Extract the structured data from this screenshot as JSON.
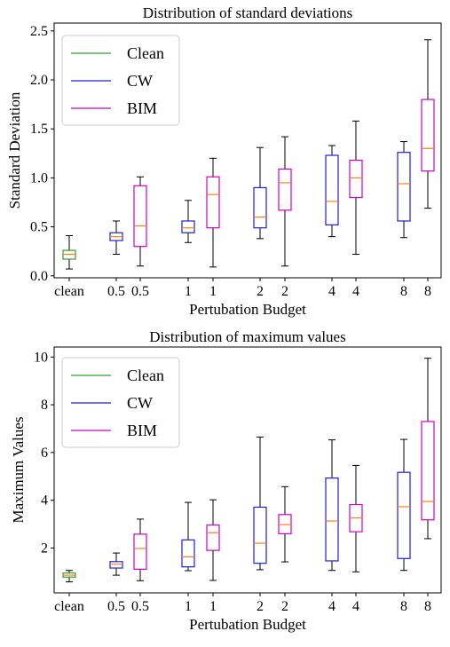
{
  "chart_data": [
    {
      "type": "box",
      "title": "Distribution of standard deviations",
      "xlabel": "Pertubation Budget",
      "ylabel": "Standard Deviation",
      "ylim": [
        -0.02,
        2.58
      ],
      "yticks": [
        0.0,
        0.5,
        1.0,
        1.5,
        2.0,
        2.5
      ],
      "ytick_labels": [
        "0.0",
        "0.5",
        "1.0",
        "1.5",
        "2.0",
        "2.5"
      ],
      "grid": false,
      "legend_position": "upper-left",
      "legend": [
        {
          "label": "Clean",
          "color": "#2ca02c"
        },
        {
          "label": "CW",
          "color": "#1f1fdc"
        },
        {
          "label": "BIM",
          "color": "#cc00cc"
        }
      ],
      "median_color": "#ff7f0e",
      "boxes": [
        {
          "label": "clean",
          "series": "Clean",
          "min": 0.07,
          "q1": 0.17,
          "median": 0.22,
          "q3": 0.26,
          "max": 0.41
        },
        {
          "label": "0.5",
          "series": "CW",
          "min": 0.22,
          "q1": 0.36,
          "median": 0.4,
          "q3": 0.44,
          "max": 0.56
        },
        {
          "label": "0.5",
          "series": "BIM",
          "min": 0.1,
          "q1": 0.3,
          "median": 0.51,
          "q3": 0.92,
          "max": 1.01
        },
        {
          "label": "1",
          "series": "CW",
          "min": 0.34,
          "q1": 0.44,
          "median": 0.49,
          "q3": 0.56,
          "max": 0.77
        },
        {
          "label": "1",
          "series": "BIM",
          "min": 0.09,
          "q1": 0.49,
          "median": 0.83,
          "q3": 1.01,
          "max": 1.2
        },
        {
          "label": "2",
          "series": "CW",
          "min": 0.38,
          "q1": 0.49,
          "median": 0.6,
          "q3": 0.9,
          "max": 1.31
        },
        {
          "label": "2",
          "series": "BIM",
          "min": 0.1,
          "q1": 0.67,
          "median": 0.95,
          "q3": 1.09,
          "max": 1.42
        },
        {
          "label": "4",
          "series": "CW",
          "min": 0.4,
          "q1": 0.52,
          "median": 0.76,
          "q3": 1.23,
          "max": 1.33
        },
        {
          "label": "4",
          "series": "BIM",
          "min": 0.22,
          "q1": 0.8,
          "median": 1.0,
          "q3": 1.18,
          "max": 1.58
        },
        {
          "label": "8",
          "series": "CW",
          "min": 0.39,
          "q1": 0.56,
          "median": 0.94,
          "q3": 1.26,
          "max": 1.37
        },
        {
          "label": "8",
          "series": "BIM",
          "min": 0.69,
          "q1": 1.07,
          "median": 1.3,
          "q3": 1.8,
          "max": 2.41
        }
      ]
    },
    {
      "type": "box",
      "title": "Distribution of maximum values",
      "xlabel": "Pertubation Budget",
      "ylabel": "Maximum Values",
      "ylim": [
        0.12,
        10.42
      ],
      "yticks": [
        2,
        4,
        6,
        8,
        10
      ],
      "ytick_labels": [
        "2",
        "4",
        "6",
        "8",
        "10"
      ],
      "grid": false,
      "legend_position": "upper-left",
      "legend": [
        {
          "label": "Clean",
          "color": "#2ca02c"
        },
        {
          "label": "CW",
          "color": "#1f1fdc"
        },
        {
          "label": "BIM",
          "color": "#cc00cc"
        }
      ],
      "median_color": "#ff7f0e",
      "boxes": [
        {
          "label": "clean",
          "series": "Clean",
          "min": 0.58,
          "q1": 0.78,
          "median": 0.86,
          "q3": 0.95,
          "max": 1.06
        },
        {
          "label": "0.5",
          "series": "CW",
          "min": 0.86,
          "q1": 1.16,
          "median": 1.32,
          "q3": 1.43,
          "max": 1.79
        },
        {
          "label": "0.5",
          "series": "BIM",
          "min": 0.63,
          "q1": 1.11,
          "median": 1.98,
          "q3": 2.58,
          "max": 3.21
        },
        {
          "label": "1",
          "series": "CW",
          "min": 1.05,
          "q1": 1.21,
          "median": 1.63,
          "q3": 2.34,
          "max": 3.91
        },
        {
          "label": "1",
          "series": "BIM",
          "min": 0.64,
          "q1": 1.9,
          "median": 2.64,
          "q3": 2.96,
          "max": 4.02
        },
        {
          "label": "2",
          "series": "CW",
          "min": 1.09,
          "q1": 1.36,
          "median": 2.2,
          "q3": 3.71,
          "max": 6.65
        },
        {
          "label": "2",
          "series": "BIM",
          "min": 1.42,
          "q1": 2.6,
          "median": 2.98,
          "q3": 3.4,
          "max": 4.57
        },
        {
          "label": "4",
          "series": "CW",
          "min": 1.06,
          "q1": 1.46,
          "median": 3.13,
          "q3": 4.93,
          "max": 6.53
        },
        {
          "label": "4",
          "series": "BIM",
          "min": 1.0,
          "q1": 2.68,
          "median": 3.26,
          "q3": 3.82,
          "max": 5.46
        },
        {
          "label": "8",
          "series": "CW",
          "min": 1.06,
          "q1": 1.56,
          "median": 3.73,
          "q3": 5.17,
          "max": 6.55
        },
        {
          "label": "8",
          "series": "BIM",
          "min": 2.39,
          "q1": 3.18,
          "median": 3.95,
          "q3": 7.3,
          "max": 9.95
        }
      ]
    }
  ]
}
